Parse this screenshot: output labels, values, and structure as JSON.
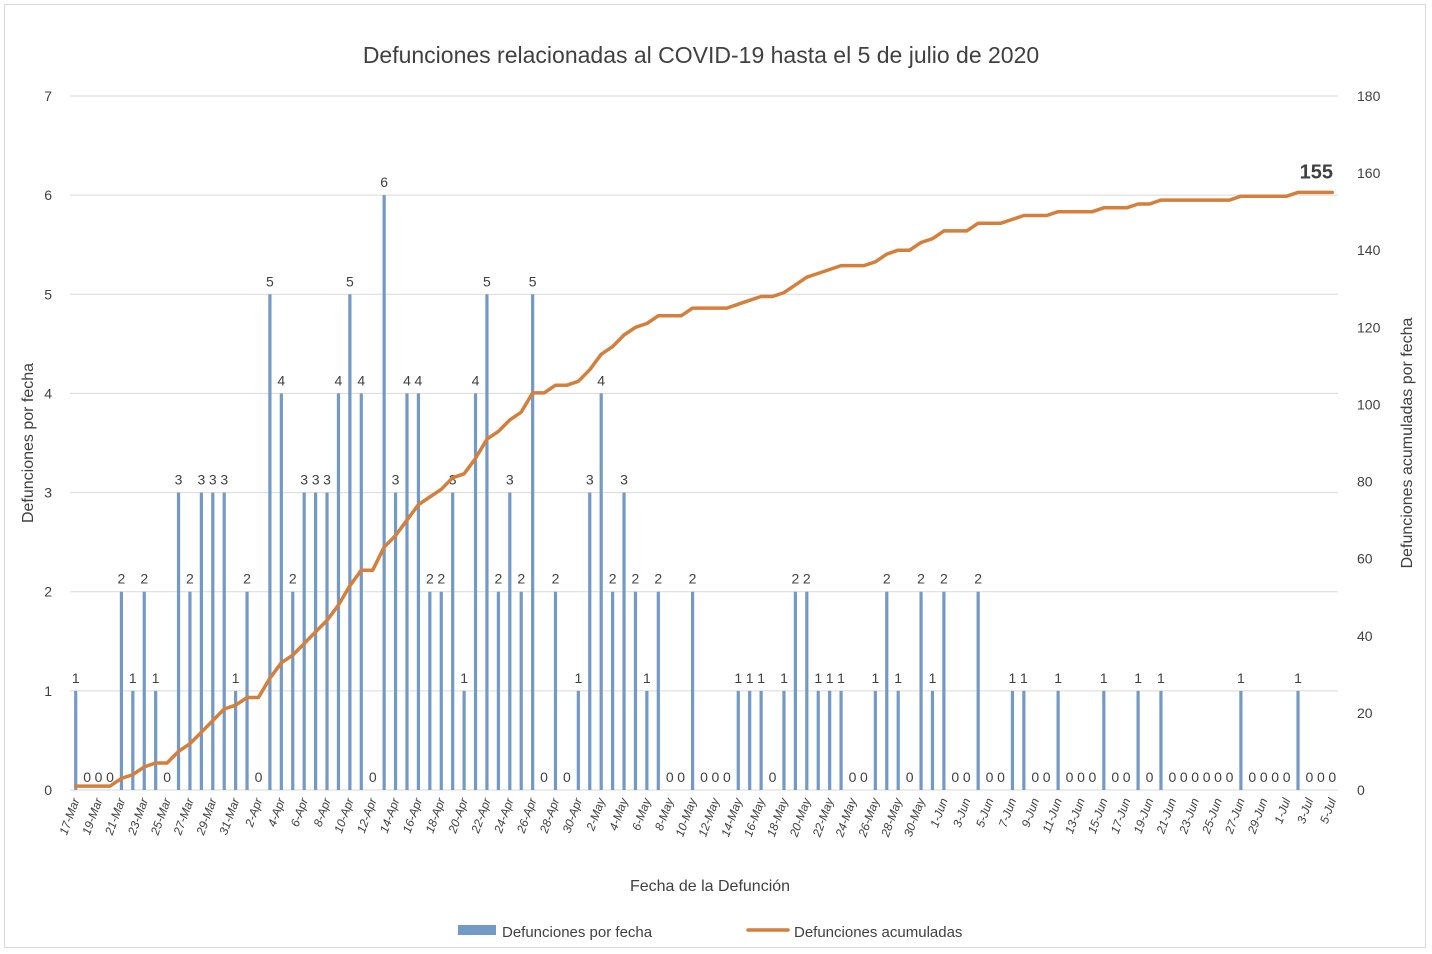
{
  "chart_data": {
    "type": "bar",
    "title": "Defunciones relacionadas al COVID-19 hasta el 5 de julio de 2020",
    "xlabel": "Fecha de la Defunción",
    "ylabel": "Defunciones por fecha",
    "y2label": "Defunciones acumuladas por fecha",
    "ylim": [
      0,
      7
    ],
    "y2lim": [
      0,
      180
    ],
    "yticks": [
      "0",
      "1",
      "2",
      "3",
      "4",
      "5",
      "6",
      "7"
    ],
    "y2ticks": [
      "0",
      "20",
      "40",
      "60",
      "80",
      "100",
      "120",
      "140",
      "160",
      "180"
    ],
    "grid": true,
    "legend_position": "bottom",
    "colors": {
      "bars": "#7399c6",
      "line": "#d47f3b",
      "grid": "#d9d9d9"
    },
    "categories": [
      "17-Mar",
      "18-Mar",
      "19-Mar",
      "20-Mar",
      "21-Mar",
      "22-Mar",
      "23-Mar",
      "24-Mar",
      "25-Mar",
      "26-Mar",
      "27-Mar",
      "28-Mar",
      "29-Mar",
      "30-Mar",
      "31-Mar",
      "1-Apr",
      "2-Apr",
      "3-Apr",
      "4-Apr",
      "5-Apr",
      "6-Apr",
      "7-Apr",
      "8-Apr",
      "9-Apr",
      "10-Apr",
      "11-Apr",
      "12-Apr",
      "13-Apr",
      "14-Apr",
      "15-Apr",
      "16-Apr",
      "17-Apr",
      "18-Apr",
      "19-Apr",
      "20-Apr",
      "21-Apr",
      "22-Apr",
      "23-Apr",
      "24-Apr",
      "25-Apr",
      "26-Apr",
      "27-Apr",
      "28-Apr",
      "29-Apr",
      "30-Apr",
      "1-May",
      "2-May",
      "3-May",
      "4-May",
      "5-May",
      "6-May",
      "7-May",
      "8-May",
      "9-May",
      "10-May",
      "11-May",
      "12-May",
      "13-May",
      "14-May",
      "15-May",
      "16-May",
      "17-May",
      "18-May",
      "19-May",
      "20-May",
      "21-May",
      "22-May",
      "23-May",
      "24-May",
      "25-May",
      "26-May",
      "27-May",
      "28-May",
      "29-May",
      "30-May",
      "31-May",
      "1-Jun",
      "2-Jun",
      "3-Jun",
      "4-Jun",
      "5-Jun",
      "6-Jun",
      "7-Jun",
      "8-Jun",
      "9-Jun",
      "10-Jun",
      "11-Jun",
      "12-Jun",
      "13-Jun",
      "14-Jun",
      "15-Jun",
      "16-Jun",
      "17-Jun",
      "18-Jun",
      "19-Jun",
      "20-Jun",
      "21-Jun",
      "22-Jun",
      "23-Jun",
      "24-Jun",
      "25-Jun",
      "26-Jun",
      "27-Jun",
      "28-Jun",
      "29-Jun",
      "30-Jun",
      "1-Jul",
      "2-Jul",
      "3-Jul",
      "4-Jul",
      "5-Jul"
    ],
    "series": [
      {
        "name": "Defunciones por fecha",
        "type": "bar",
        "axis": "left",
        "values": [
          1,
          0,
          0,
          0,
          2,
          1,
          2,
          1,
          0,
          3,
          2,
          3,
          3,
          3,
          1,
          2,
          0,
          5,
          4,
          2,
          3,
          3,
          3,
          4,
          5,
          4,
          0,
          6,
          3,
          4,
          4,
          2,
          2,
          3,
          1,
          4,
          5,
          2,
          3,
          2,
          5,
          0,
          2,
          0,
          1,
          3,
          4,
          2,
          3,
          2,
          1,
          2,
          0,
          0,
          2,
          0,
          0,
          0,
          1,
          1,
          1,
          0,
          1,
          2,
          2,
          1,
          1,
          1,
          0,
          0,
          1,
          2,
          1,
          0,
          2,
          1,
          2,
          0,
          0,
          2,
          0,
          0,
          1,
          1,
          0,
          0,
          1,
          0,
          0,
          0,
          1,
          0,
          0,
          1,
          0,
          1,
          0,
          0,
          0,
          0,
          0,
          0,
          1,
          0,
          0,
          0,
          0,
          1,
          0,
          0,
          0
        ]
      },
      {
        "name": "Defunciones acumuladas",
        "type": "line",
        "axis": "right",
        "values": [
          1,
          1,
          1,
          1,
          3,
          4,
          6,
          7,
          7,
          10,
          12,
          15,
          18,
          21,
          22,
          24,
          24,
          29,
          33,
          35,
          38,
          41,
          44,
          48,
          53,
          57,
          57,
          63,
          66,
          70,
          74,
          76,
          78,
          81,
          82,
          86,
          91,
          93,
          96,
          98,
          103,
          103,
          105,
          105,
          106,
          109,
          113,
          115,
          118,
          120,
          121,
          123,
          123,
          123,
          125,
          125,
          125,
          125,
          126,
          127,
          128,
          128,
          129,
          131,
          133,
          134,
          135,
          136,
          136,
          136,
          137,
          139,
          140,
          140,
          142,
          143,
          145,
          145,
          145,
          147,
          147,
          147,
          148,
          149,
          149,
          149,
          150,
          150,
          150,
          150,
          151,
          151,
          151,
          152,
          152,
          153,
          153,
          153,
          153,
          153,
          153,
          153,
          154,
          154,
          154,
          154,
          154,
          155,
          155,
          155,
          155
        ]
      }
    ],
    "annotations": [
      {
        "text": "155",
        "point": "5-Jul",
        "series": "Defunciones acumuladas"
      }
    ]
  }
}
